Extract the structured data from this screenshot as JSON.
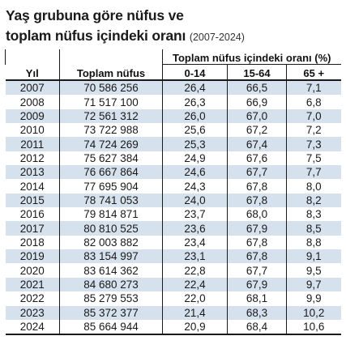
{
  "title": {
    "line1": "Yaş grubuna göre nüfus ve",
    "line2": "toplam nüfus içindeki oranı",
    "range": "(2007-2024)"
  },
  "table": {
    "headers": {
      "year": "Yıl",
      "total": "Toplam nüfus",
      "group": "Toplam nüfus içindeki oranı (%)",
      "age_0_14": "0-14",
      "age_15_64": "15-64",
      "age_65_plus": "65 +"
    },
    "rows": [
      {
        "year": "2007",
        "total": "70 586 256",
        "a": "26,4",
        "b": "66,5",
        "c": "7,1"
      },
      {
        "year": "2008",
        "total": "71 517 100",
        "a": "26,3",
        "b": "66,9",
        "c": "6,8"
      },
      {
        "year": "2009",
        "total": "72 561 312",
        "a": "26,0",
        "b": "67,0",
        "c": "7,0"
      },
      {
        "year": "2010",
        "total": "73 722 988",
        "a": "25,6",
        "b": "67,2",
        "c": "7,2"
      },
      {
        "year": "2011",
        "total": "74 724 269",
        "a": "25,3",
        "b": "67,4",
        "c": "7,3"
      },
      {
        "year": "2012",
        "total": "75 627 384",
        "a": "24,9",
        "b": "67,6",
        "c": "7,5"
      },
      {
        "year": "2013",
        "total": "76 667 864",
        "a": "24,6",
        "b": "67,7",
        "c": "7,7"
      },
      {
        "year": "2014",
        "total": "77 695 904",
        "a": "24,3",
        "b": "67,8",
        "c": "8,0"
      },
      {
        "year": "2015",
        "total": "78 741 053",
        "a": "24,0",
        "b": "67,8",
        "c": "8,2"
      },
      {
        "year": "2016",
        "total": "79 814 871",
        "a": "23,7",
        "b": "68,0",
        "c": "8,3"
      },
      {
        "year": "2017",
        "total": "80 810 525",
        "a": "23,6",
        "b": "67,9",
        "c": "8,5"
      },
      {
        "year": "2018",
        "total": "82 003 882",
        "a": "23,4",
        "b": "67,8",
        "c": "8,8"
      },
      {
        "year": "2019",
        "total": "83 154 997",
        "a": "23,1",
        "b": "67,8",
        "c": "9,1"
      },
      {
        "year": "2020",
        "total": "83 614 362",
        "a": "22,8",
        "b": "67,7",
        "c": "9,5"
      },
      {
        "year": "2021",
        "total": "84 680 273",
        "a": "22,4",
        "b": "67,9",
        "c": "9,7"
      },
      {
        "year": "2022",
        "total": "85 279 553",
        "a": "22,0",
        "b": "68,1",
        "c": "9,9"
      },
      {
        "year": "2023",
        "total": "85 372 377",
        "a": "21,4",
        "b": "68,3",
        "c": "10,2"
      },
      {
        "year": "2024",
        "total": "85 664 944",
        "a": "20,9",
        "b": "68,4",
        "c": "10,6"
      }
    ]
  },
  "colors": {
    "row_highlight": "#d6e1ee",
    "text": "#1a1a1a"
  }
}
